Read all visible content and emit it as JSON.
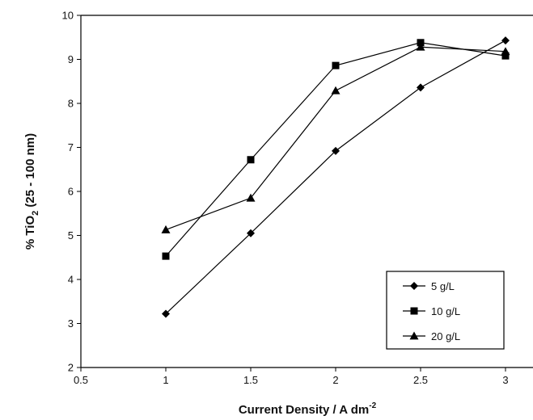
{
  "chart_data": {
    "type": "line",
    "xlabel": "Current Density / A dm",
    "xlabel_sup": "-2",
    "ylabel_prefix": "% TiO",
    "ylabel_sub": "2",
    "ylabel_suffix": " (25 - 100 nm)",
    "xlim": [
      0.5,
      3.0
    ],
    "ylim": [
      2,
      10
    ],
    "x_ticks": [
      0.5,
      1,
      1.5,
      2,
      2.5,
      3
    ],
    "x_tick_labels": [
      "0.5",
      "1",
      "1.5",
      "2",
      "2.5",
      "3"
    ],
    "y_ticks": [
      2,
      3,
      4,
      5,
      6,
      7,
      8,
      9,
      10
    ],
    "y_tick_labels": [
      "2",
      "3",
      "4",
      "5",
      "6",
      "7",
      "8",
      "9",
      "10"
    ],
    "grid": false,
    "legend_position": "bottom-right",
    "x": [
      1,
      1.5,
      2,
      2.5,
      3
    ],
    "series": [
      {
        "name": "5 g/L",
        "marker": "diamond",
        "values": [
          3.22,
          5.05,
          6.92,
          8.36,
          9.43
        ]
      },
      {
        "name": "10 g/L",
        "marker": "square",
        "values": [
          4.53,
          6.72,
          8.86,
          9.38,
          9.08
        ]
      },
      {
        "name": "20 g/L",
        "marker": "triangle",
        "values": [
          5.13,
          5.85,
          8.29,
          9.28,
          9.18
        ]
      }
    ],
    "line_color": "#000000"
  }
}
